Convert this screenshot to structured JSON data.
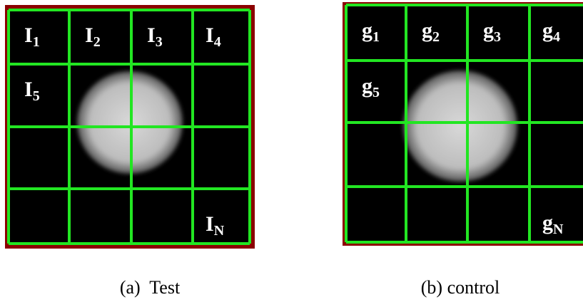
{
  "panels": [
    {
      "labels": [
        {
          "base": "I",
          "sub": "1"
        },
        {
          "base": "I",
          "sub": "2"
        },
        {
          "base": "I",
          "sub": "3"
        },
        {
          "base": "I",
          "sub": "4"
        },
        {
          "base": "I",
          "sub": "5"
        },
        {
          "base": "I",
          "sub": "N"
        }
      ],
      "caption": "(a)  Test"
    },
    {
      "labels": [
        {
          "base": "g",
          "sub": "1"
        },
        {
          "base": "g",
          "sub": "2"
        },
        {
          "base": "g",
          "sub": "3"
        },
        {
          "base": "g",
          "sub": "4"
        },
        {
          "base": "g",
          "sub": "5"
        },
        {
          "base": "g",
          "sub": "N"
        }
      ],
      "caption": "(b) control"
    }
  ]
}
